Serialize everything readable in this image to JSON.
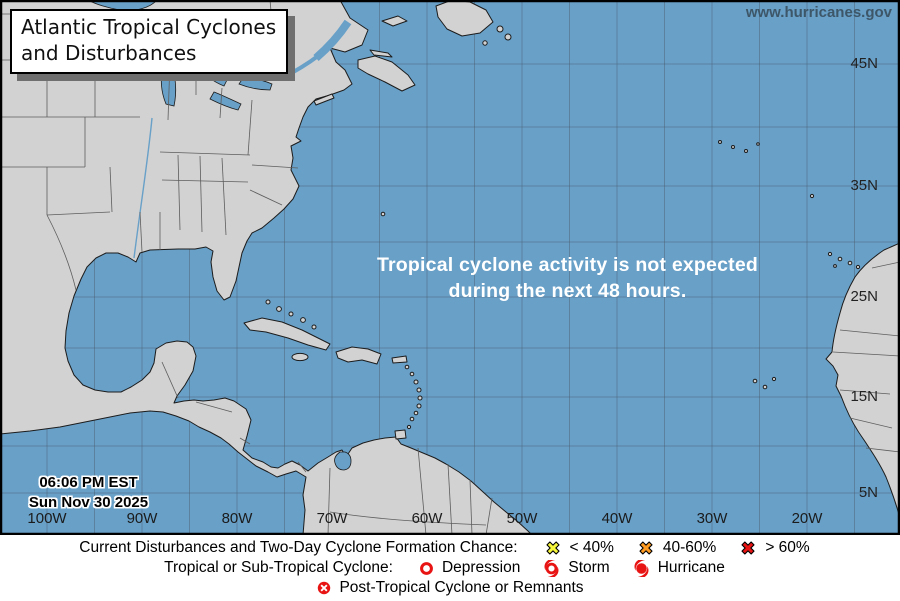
{
  "header": {
    "url": "www.hurricanes.gov"
  },
  "title_box": {
    "line1": "Atlantic Tropical Cyclones",
    "line2": "and Disturbances"
  },
  "map": {
    "message_line1": "Tropical cyclone activity is not expected",
    "message_line2": "during the next 48 hours.",
    "timestamp_line1": "06:06 PM EST",
    "timestamp_line2": "Sun Nov 30 2025",
    "lat_labels": [
      "45N",
      "35N",
      "25N",
      "15N",
      "5N"
    ],
    "lon_labels": [
      "100W",
      "90W",
      "80W",
      "70W",
      "60W",
      "50W",
      "40W",
      "30W",
      "20W"
    ]
  },
  "legend": {
    "rows": [
      {
        "label": "Current Disturbances and Two-Day Cyclone Formation Chance:",
        "items": [
          {
            "icon": "x-mark-yellow",
            "label": "< 40%"
          },
          {
            "icon": "x-mark-orange",
            "label": "40-60%"
          },
          {
            "icon": "x-mark-red",
            "label": "> 60%"
          }
        ]
      },
      {
        "label": "Tropical or Sub-Tropical Cyclone:",
        "items": [
          {
            "icon": "depression",
            "label": "Depression"
          },
          {
            "icon": "storm",
            "label": "Storm"
          },
          {
            "icon": "hurricane",
            "label": "Hurricane"
          }
        ]
      },
      {
        "label": "",
        "items": [
          {
            "icon": "post-tropical",
            "label": "Post-Tropical Cyclone or Remnants"
          }
        ]
      }
    ]
  },
  "colors": {
    "ocean": "#68a0c8",
    "land": "#d2d2d2",
    "chance_low": "#f6f63c",
    "chance_med": "#ff9b20",
    "chance_high": "#e81414",
    "cyclone_red": "#e81414",
    "url_text": "#3d5668"
  }
}
